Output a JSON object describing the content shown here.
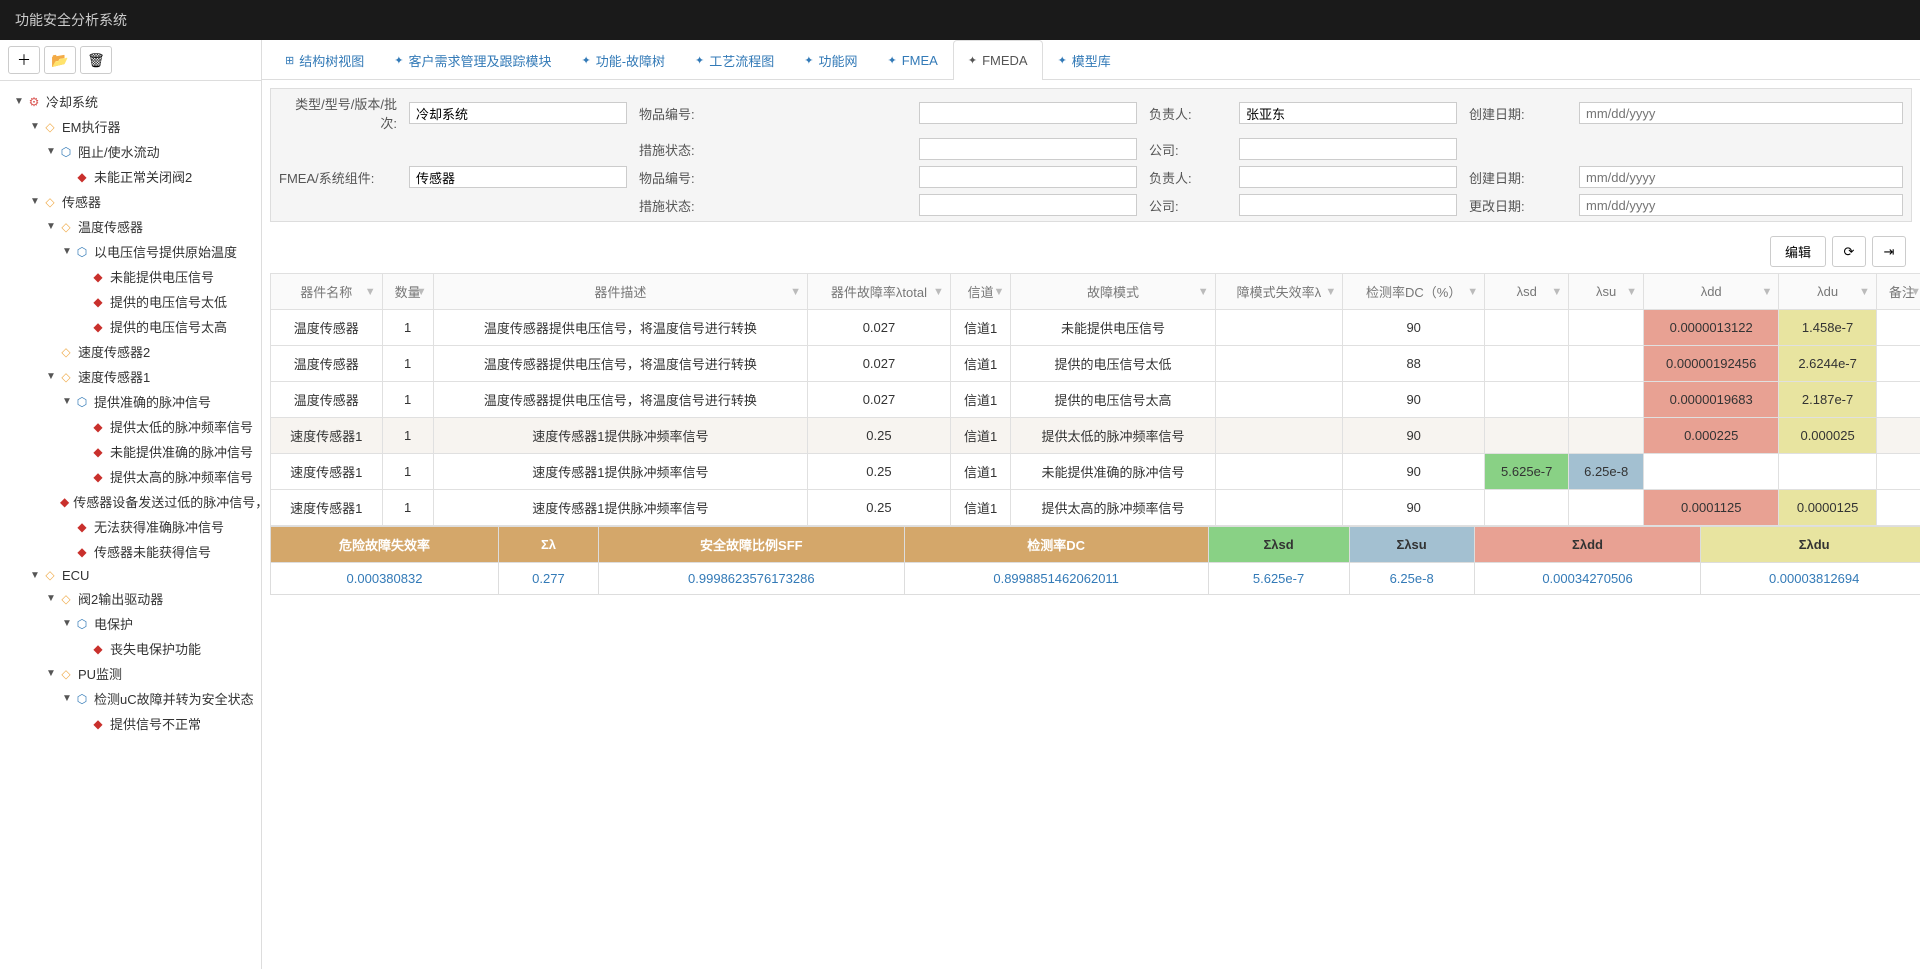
{
  "app_title": "功能安全分析系统",
  "toolbar_icons": {
    "add": "＋",
    "open": "📂",
    "delete": "🗑"
  },
  "tree": [
    {
      "depth": 0,
      "caret": "▼",
      "icon": "ic-sys",
      "glyph": "⚙",
      "label": "冷却系统"
    },
    {
      "depth": 1,
      "caret": "▼",
      "icon": "ic-sub",
      "glyph": "◇",
      "label": "EM执行器"
    },
    {
      "depth": 2,
      "caret": "▼",
      "icon": "ic-hex",
      "glyph": "⬡",
      "label": "阻止/使水流动"
    },
    {
      "depth": 3,
      "caret": "",
      "icon": "ic-dia",
      "glyph": "◆",
      "label": "未能正常关闭阀2"
    },
    {
      "depth": 1,
      "caret": "▼",
      "icon": "ic-sub",
      "glyph": "◇",
      "label": "传感器"
    },
    {
      "depth": 2,
      "caret": "▼",
      "icon": "ic-sub",
      "glyph": "◇",
      "label": "温度传感器"
    },
    {
      "depth": 3,
      "caret": "▼",
      "icon": "ic-hex",
      "glyph": "⬡",
      "label": "以电压信号提供原始温度"
    },
    {
      "depth": 4,
      "caret": "",
      "icon": "ic-dia",
      "glyph": "◆",
      "label": "未能提供电压信号"
    },
    {
      "depth": 4,
      "caret": "",
      "icon": "ic-dia",
      "glyph": "◆",
      "label": "提供的电压信号太低"
    },
    {
      "depth": 4,
      "caret": "",
      "icon": "ic-dia",
      "glyph": "◆",
      "label": "提供的电压信号太高"
    },
    {
      "depth": 2,
      "caret": "",
      "icon": "ic-sub",
      "glyph": "◇",
      "label": "速度传感器2"
    },
    {
      "depth": 2,
      "caret": "▼",
      "icon": "ic-sub",
      "glyph": "◇",
      "label": "速度传感器1"
    },
    {
      "depth": 3,
      "caret": "▼",
      "icon": "ic-hex",
      "glyph": "⬡",
      "label": "提供准确的脉冲信号"
    },
    {
      "depth": 4,
      "caret": "",
      "icon": "ic-dia",
      "glyph": "◆",
      "label": "提供太低的脉冲频率信号"
    },
    {
      "depth": 4,
      "caret": "",
      "icon": "ic-dia",
      "glyph": "◆",
      "label": "未能提供准确的脉冲信号"
    },
    {
      "depth": 4,
      "caret": "",
      "icon": "ic-dia",
      "glyph": "◆",
      "label": "提供太高的脉冲频率信号"
    },
    {
      "depth": 3,
      "caret": "",
      "icon": "ic-dia",
      "glyph": "◆",
      "label": "传感器设备发送过低的脉冲信号，不准确"
    },
    {
      "depth": 3,
      "caret": "",
      "icon": "ic-dia",
      "glyph": "◆",
      "label": "无法获得准确脉冲信号"
    },
    {
      "depth": 3,
      "caret": "",
      "icon": "ic-dia",
      "glyph": "◆",
      "label": "传感器未能获得信号"
    },
    {
      "depth": 1,
      "caret": "▼",
      "icon": "ic-sub",
      "glyph": "◇",
      "label": "ECU"
    },
    {
      "depth": 2,
      "caret": "▼",
      "icon": "ic-sub",
      "glyph": "◇",
      "label": "阀2输出驱动器"
    },
    {
      "depth": 3,
      "caret": "▼",
      "icon": "ic-hex",
      "glyph": "⬡",
      "label": "电保护"
    },
    {
      "depth": 4,
      "caret": "",
      "icon": "ic-dia",
      "glyph": "◆",
      "label": "丧失电保护功能"
    },
    {
      "depth": 2,
      "caret": "▼",
      "icon": "ic-sub",
      "glyph": "◇",
      "label": "PU监测"
    },
    {
      "depth": 3,
      "caret": "▼",
      "icon": "ic-hex",
      "glyph": "⬡",
      "label": "检测uC故障并转为安全状态"
    },
    {
      "depth": 4,
      "caret": "",
      "icon": "ic-dia",
      "glyph": "◆",
      "label": "提供信号不正常"
    }
  ],
  "tabs": [
    {
      "label": "结构树视图",
      "icon": "⊞",
      "active": false
    },
    {
      "label": "客户需求管理及跟踪模块",
      "icon": "✦",
      "active": false
    },
    {
      "label": "功能-故障树",
      "icon": "✦",
      "active": false
    },
    {
      "label": "工艺流程图",
      "icon": "✦",
      "active": false
    },
    {
      "label": "功能网",
      "icon": "✦",
      "active": false
    },
    {
      "label": "FMEA",
      "icon": "✦",
      "active": false
    },
    {
      "label": "FMEDA",
      "icon": "✦",
      "active": true
    },
    {
      "label": "模型库",
      "icon": "✦",
      "active": false
    }
  ],
  "form": {
    "labels": {
      "type": "类型/型号/版本/批次:",
      "item_no": "物品编号:",
      "owner": "负责人:",
      "create_date": "创建日期:",
      "status": "措施状态:",
      "company": "公司:",
      "fmea": "FMEA/系统组件:",
      "change_date": "更改日期:"
    },
    "values": {
      "type": "冷却系统",
      "owner": "张亚东",
      "fmea": "传感器",
      "date_placeholder": "mm/dd/yyyy"
    }
  },
  "actions": {
    "edit": "编辑",
    "refresh": "⟳",
    "export": "⇥"
  },
  "table": {
    "headers": [
      "器件名称",
      "数量",
      "器件描述",
      "器件故障率λtotal",
      "信道",
      "故障模式",
      "障模式失效率λ",
      "检测率DC（%）",
      "λsd",
      "λsu",
      "λdd",
      "λdu",
      "备注"
    ],
    "rows": [
      {
        "cells": [
          "温度传感器",
          "1",
          "温度传感器提供电压信号，将温度信号进行转换",
          "0.027",
          "信道1",
          "未能提供电压信号",
          "",
          "90",
          "",
          "",
          "0.0000013122",
          "1.458e-7",
          ""
        ],
        "colors": [
          "",
          "",
          "",
          "",
          "",
          "",
          "",
          "",
          "",
          "",
          "cell-red",
          "cell-yellow",
          ""
        ]
      },
      {
        "cells": [
          "温度传感器",
          "1",
          "温度传感器提供电压信号，将温度信号进行转换",
          "0.027",
          "信道1",
          "提供的电压信号太低",
          "",
          "88",
          "",
          "",
          "0.00000192456",
          "2.6244e-7",
          ""
        ],
        "colors": [
          "",
          "",
          "",
          "",
          "",
          "",
          "",
          "",
          "",
          "",
          "cell-red",
          "cell-yellow",
          ""
        ]
      },
      {
        "cells": [
          "温度传感器",
          "1",
          "温度传感器提供电压信号，将温度信号进行转换",
          "0.027",
          "信道1",
          "提供的电压信号太高",
          "",
          "90",
          "",
          "",
          "0.0000019683",
          "2.187e-7",
          ""
        ],
        "colors": [
          "",
          "",
          "",
          "",
          "",
          "",
          "",
          "",
          "",
          "",
          "cell-red",
          "cell-yellow",
          ""
        ]
      },
      {
        "cells": [
          "速度传感器1",
          "1",
          "速度传感器1提供脉冲频率信号",
          "0.25",
          "信道1",
          "提供太低的脉冲频率信号",
          "",
          "90",
          "",
          "",
          "0.000225",
          "0.000025",
          ""
        ],
        "colors": [
          "",
          "",
          "",
          "",
          "",
          "",
          "",
          "",
          "",
          "",
          "cell-red",
          "cell-yellow",
          ""
        ]
      },
      {
        "cells": [
          "速度传感器1",
          "1",
          "速度传感器1提供脉冲频率信号",
          "0.25",
          "信道1",
          "未能提供准确的脉冲信号",
          "",
          "90",
          "5.625e-7",
          "6.25e-8",
          "",
          "",
          ""
        ],
        "colors": [
          "",
          "",
          "",
          "",
          "",
          "",
          "",
          "",
          "cell-green",
          "cell-blue",
          "",
          "",
          ""
        ]
      },
      {
        "cells": [
          "速度传感器1",
          "1",
          "速度传感器1提供脉冲频率信号",
          "0.25",
          "信道1",
          "提供太高的脉冲频率信号",
          "",
          "90",
          "",
          "",
          "0.0001125",
          "0.0000125",
          ""
        ],
        "colors": [
          "",
          "",
          "",
          "",
          "",
          "",
          "",
          "",
          "",
          "",
          "cell-red",
          "cell-yellow",
          ""
        ]
      }
    ]
  },
  "summary": {
    "headers": [
      {
        "label": "危险故障失效率",
        "cls": "sh-orange"
      },
      {
        "label": "Σλ",
        "cls": "sh-orange"
      },
      {
        "label": "安全故障比例SFF",
        "cls": "sh-orange"
      },
      {
        "label": "检测率DC",
        "cls": "sh-orange"
      },
      {
        "label": "Σλsd",
        "cls": "sh-green"
      },
      {
        "label": "Σλsu",
        "cls": "sh-blue"
      },
      {
        "label": "Σλdd",
        "cls": "sh-red"
      },
      {
        "label": "Σλdu",
        "cls": "sh-yellow"
      }
    ],
    "values": [
      "0.000380832",
      "0.277",
      "0.9998623576173286",
      "0.8998851462062011",
      "5.625e-7",
      "6.25e-8",
      "0.00034270506",
      "0.00003812694"
    ]
  }
}
